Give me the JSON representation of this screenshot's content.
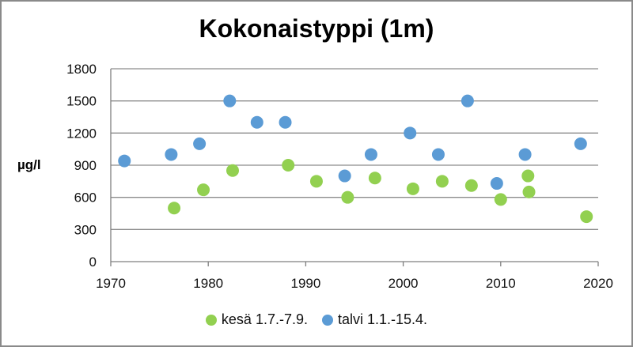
{
  "chart_data": {
    "type": "scatter",
    "title": "Kokonaistyppi (1m)",
    "ylabel": "µg/l",
    "xlabel": "",
    "xlim": [
      1970,
      2020
    ],
    "ylim": [
      0,
      1800
    ],
    "xticks": [
      "1970",
      "1980",
      "1990",
      "2000",
      "2010",
      "2020"
    ],
    "yticks": [
      "0",
      "300",
      "600",
      "900",
      "1200",
      "1500",
      "1800"
    ],
    "grid": "horizontal",
    "legend_position": "bottom",
    "series": [
      {
        "name": "kesä 1.7.-7.9.",
        "color": "#92d050",
        "points": [
          [
            1976.5,
            500
          ],
          [
            1979.5,
            670
          ],
          [
            1982.5,
            850
          ],
          [
            1988.2,
            900
          ],
          [
            1991.1,
            750
          ],
          [
            1994.3,
            600
          ],
          [
            1997.1,
            780
          ],
          [
            2001.0,
            680
          ],
          [
            2004.0,
            750
          ],
          [
            2007.0,
            710
          ],
          [
            2010.0,
            580
          ],
          [
            2012.8,
            800
          ],
          [
            2012.9,
            650
          ],
          [
            2018.8,
            420
          ]
        ]
      },
      {
        "name": "talvi 1.1.-15.4.",
        "color": "#5b9bd5",
        "points": [
          [
            1971.4,
            940
          ],
          [
            1976.2,
            1000
          ],
          [
            1979.1,
            1100
          ],
          [
            1982.2,
            1500
          ],
          [
            1985.0,
            1300
          ],
          [
            1987.9,
            1300
          ],
          [
            1994.0,
            800
          ],
          [
            1996.7,
            1000
          ],
          [
            2000.7,
            1200
          ],
          [
            2003.6,
            1000
          ],
          [
            2006.6,
            1500
          ],
          [
            2009.6,
            730
          ],
          [
            2012.5,
            1000
          ],
          [
            2018.2,
            1100
          ]
        ]
      }
    ]
  }
}
